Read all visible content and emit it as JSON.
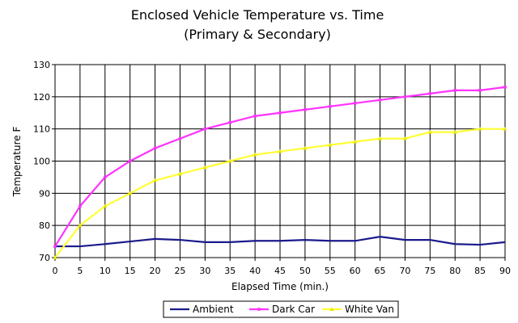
{
  "chart_data": {
    "type": "line",
    "title": "Enclosed Vehicle Temperature vs. Time",
    "subtitle": "(Primary & Secondary)",
    "xlabel": "Elapsed Time (min.)",
    "ylabel": "Temperature F",
    "x": [
      0,
      5,
      10,
      15,
      20,
      25,
      30,
      35,
      40,
      45,
      50,
      55,
      60,
      65,
      70,
      75,
      80,
      85,
      90
    ],
    "xlim": [
      0,
      90
    ],
    "ylim": [
      70,
      130
    ],
    "yticks": [
      70,
      80,
      90,
      100,
      110,
      120,
      130
    ],
    "grid": true,
    "legend_position": "bottom",
    "series": [
      {
        "name": "Ambient",
        "color": "#1a1a8c",
        "marker": "none",
        "values": [
          73.5,
          73.5,
          74.2,
          75,
          75.8,
          75.5,
          74.8,
          74.8,
          75.2,
          75.2,
          75.5,
          75.2,
          75.2,
          76.5,
          75.5,
          75.5,
          74.2,
          74,
          74.8
        ]
      },
      {
        "name": "Dark Car",
        "color": "#ff33ff",
        "marker": "square",
        "values": [
          73.5,
          86,
          95,
          100,
          104,
          107,
          110,
          112,
          114,
          115,
          116,
          117,
          118,
          119,
          120,
          121,
          122,
          122,
          123
        ]
      },
      {
        "name": "White Van",
        "color": "#ffff33",
        "marker": "triangle",
        "values": [
          70,
          80,
          86,
          90,
          94,
          96,
          98,
          100,
          102,
          103,
          104,
          105,
          106,
          107,
          107,
          109,
          109,
          110,
          110
        ]
      }
    ]
  }
}
